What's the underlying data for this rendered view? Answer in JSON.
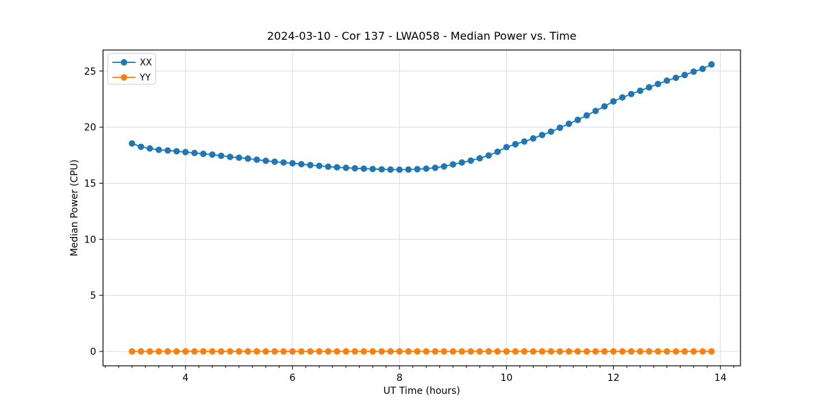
{
  "figure": {
    "background": "#ffffff"
  },
  "chart_data": {
    "type": "line",
    "title": "2024-03-10 - Cor 137 - LWA058 - Median Power vs. Time",
    "xlabel": "UT Time (hours)",
    "ylabel": "Median Power (CPU)",
    "xlim": [
      2.458,
      14.375
    ],
    "ylim": [
      -1.28,
      26.88
    ],
    "xticks": [
      4,
      6,
      8,
      10,
      12,
      14
    ],
    "yticks": [
      0,
      5,
      10,
      15,
      20,
      25
    ],
    "minor_xtick_step": 0.25,
    "grid": true,
    "grid_color": "#dcdcdc",
    "legend_position": "upper-left",
    "x": [
      3.0,
      3.167,
      3.333,
      3.5,
      3.667,
      3.833,
      4.0,
      4.167,
      4.333,
      4.5,
      4.667,
      4.833,
      5.0,
      5.167,
      5.333,
      5.5,
      5.667,
      5.833,
      6.0,
      6.167,
      6.333,
      6.5,
      6.667,
      6.833,
      7.0,
      7.167,
      7.333,
      7.5,
      7.667,
      7.833,
      8.0,
      8.167,
      8.333,
      8.5,
      8.667,
      8.833,
      9.0,
      9.167,
      9.333,
      9.5,
      9.667,
      9.833,
      10.0,
      10.167,
      10.333,
      10.5,
      10.667,
      10.833,
      11.0,
      11.167,
      11.333,
      11.5,
      11.667,
      11.833,
      12.0,
      12.167,
      12.333,
      12.5,
      12.667,
      12.833,
      13.0,
      13.167,
      13.333,
      13.5,
      13.667,
      13.833
    ],
    "series": [
      {
        "name": "XX",
        "color": "#1f77b4",
        "values": [
          18.55,
          18.25,
          18.1,
          17.98,
          17.92,
          17.85,
          17.78,
          17.7,
          17.62,
          17.55,
          17.45,
          17.35,
          17.28,
          17.2,
          17.1,
          17.0,
          16.92,
          16.85,
          16.78,
          16.7,
          16.62,
          16.55,
          16.48,
          16.42,
          16.38,
          16.33,
          16.3,
          16.27,
          16.24,
          16.22,
          16.21,
          16.22,
          16.25,
          16.3,
          16.38,
          16.5,
          16.68,
          16.85,
          17.02,
          17.22,
          17.48,
          17.8,
          18.22,
          18.48,
          18.72,
          19.0,
          19.3,
          19.6,
          19.95,
          20.3,
          20.65,
          21.05,
          21.45,
          21.85,
          22.3,
          22.65,
          22.95,
          23.25,
          23.55,
          23.85,
          24.15,
          24.4,
          24.65,
          24.95,
          25.2,
          25.6
        ]
      },
      {
        "name": "YY",
        "color": "#ff7f0e",
        "values": [
          0,
          0,
          0,
          0,
          0,
          0,
          0,
          0,
          0,
          0,
          0,
          0,
          0,
          0,
          0,
          0,
          0,
          0,
          0,
          0,
          0,
          0,
          0,
          0,
          0,
          0,
          0,
          0,
          0,
          0,
          0,
          0,
          0,
          0,
          0,
          0,
          0,
          0,
          0,
          0,
          0,
          0,
          0,
          0,
          0,
          0,
          0,
          0,
          0,
          0,
          0,
          0,
          0,
          0,
          0,
          0,
          0,
          0,
          0,
          0,
          0,
          0,
          0,
          0,
          0,
          0
        ]
      }
    ]
  }
}
